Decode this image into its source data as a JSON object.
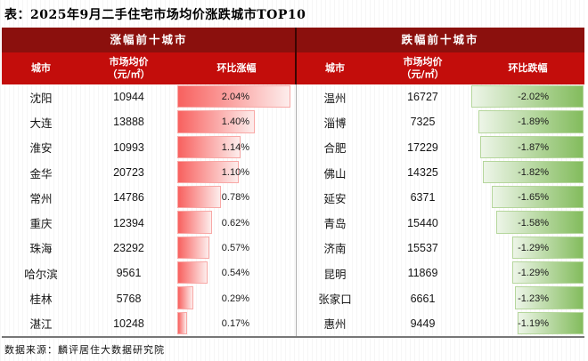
{
  "title": "表：2025年9月二手住宅市场均价涨跌城市TOP10",
  "source": "数据来源：麟评居住大数据研究院",
  "colors": {
    "band": "#8B100D",
    "header": "#C30D0B",
    "rise_start": "#F8615F",
    "rise_end": "#FDEDEC",
    "rise_border": "#F8A8A6",
    "fall_start": "#EDF5E8",
    "fall_end": "#83BC5D",
    "fall_border": "#B5D69C"
  },
  "chart_data": [
    {
      "type": "bar",
      "orientation": "horizontal",
      "bar_direction": "left-to-right",
      "title": "涨幅前十城市",
      "col_city": "城市",
      "col_price_l1": "市场均价",
      "col_price_l2": "（元/㎡）",
      "col_change": "环比涨幅",
      "xlim": [
        0,
        2.04
      ],
      "categories": [
        "沈阳",
        "大连",
        "淮安",
        "金华",
        "常州",
        "重庆",
        "珠海",
        "哈尔滨",
        "桂林",
        "湛江"
      ],
      "prices": [
        10944,
        13888,
        10993,
        20723,
        14786,
        12394,
        23292,
        9561,
        5768,
        10248
      ],
      "values": [
        2.04,
        1.4,
        1.14,
        1.1,
        0.78,
        0.62,
        0.57,
        0.54,
        0.29,
        0.17
      ],
      "labels": [
        "2.04%",
        "1.40%",
        "1.14%",
        "1.10%",
        "0.78%",
        "0.62%",
        "0.57%",
        "0.54%",
        "0.29%",
        "0.17%"
      ]
    },
    {
      "type": "bar",
      "orientation": "horizontal",
      "bar_direction": "right-to-left",
      "title": "跌幅前十城市",
      "col_city": "城市",
      "col_price_l1": "市场均价",
      "col_price_l2": "（元/㎡）",
      "col_change": "环比跌幅",
      "xlim": [
        -2.02,
        0
      ],
      "categories": [
        "温州",
        "淄博",
        "合肥",
        "佛山",
        "延安",
        "青岛",
        "济南",
        "昆明",
        "张家口",
        "惠州"
      ],
      "prices": [
        16727,
        7325,
        17229,
        14325,
        6371,
        15440,
        15537,
        11869,
        6661,
        9449
      ],
      "values": [
        -2.02,
        -1.89,
        -1.87,
        -1.82,
        -1.65,
        -1.58,
        -1.29,
        -1.29,
        -1.23,
        -1.19
      ],
      "labels": [
        "-2.02%",
        "-1.89%",
        "-1.87%",
        "-1.82%",
        "-1.65%",
        "-1.58%",
        "-1.29%",
        "-1.29%",
        "-1.23%",
        "-1.19%"
      ]
    }
  ]
}
